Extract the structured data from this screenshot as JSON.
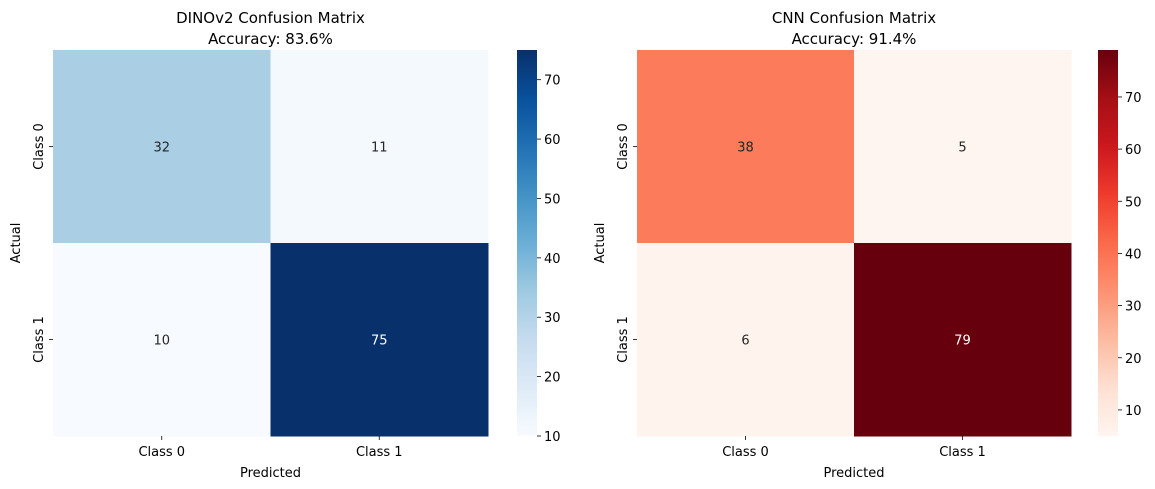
{
  "chart_data": [
    {
      "type": "heatmap",
      "title": "DINOv2 Confusion Matrix",
      "subtitle": "Accuracy: 83.6%",
      "xlabel": "Predicted",
      "ylabel": "Actual",
      "x_categories": [
        "Class 0",
        "Class 1"
      ],
      "y_categories": [
        "Class 0",
        "Class 1"
      ],
      "values": [
        [
          32,
          11
        ],
        [
          10,
          75
        ]
      ],
      "colormap": "Blues",
      "colorbar_range": [
        10,
        75
      ],
      "colorbar_ticks": [
        10,
        20,
        30,
        40,
        50,
        60,
        70
      ]
    },
    {
      "type": "heatmap",
      "title": "CNN Confusion Matrix",
      "subtitle": "Accuracy: 91.4%",
      "xlabel": "Predicted",
      "ylabel": "Actual",
      "x_categories": [
        "Class 0",
        "Class 1"
      ],
      "y_categories": [
        "Class 0",
        "Class 1"
      ],
      "values": [
        [
          38,
          5
        ],
        [
          6,
          79
        ]
      ],
      "colormap": "Reds",
      "colorbar_range": [
        5,
        79
      ],
      "colorbar_ticks": [
        10,
        20,
        30,
        40,
        50,
        60,
        70
      ]
    }
  ],
  "colormaps": {
    "Blues": [
      "#f7fbff",
      "#deebf7",
      "#c6dbef",
      "#9ecae1",
      "#6baed6",
      "#4292c6",
      "#2171b5",
      "#08519c",
      "#08306b"
    ],
    "Reds": [
      "#fff5f0",
      "#fee0d2",
      "#fcbba1",
      "#fc9272",
      "#fb6a4a",
      "#ef3b2c",
      "#cb181d",
      "#a50f15",
      "#67000d"
    ]
  }
}
